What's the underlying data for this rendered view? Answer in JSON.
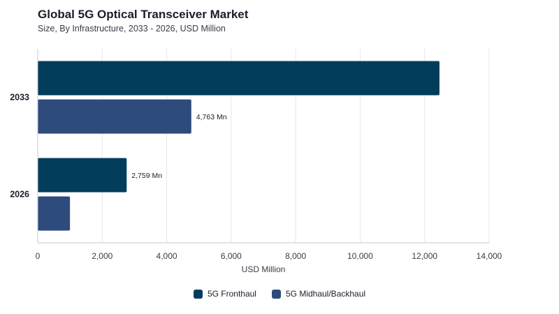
{
  "title": "Global 5G Optical Transceiver Market",
  "subtitle": "Size, By Infrastructure, 2033 - 2026, USD Million",
  "colors": {
    "fronthaul": "#023e5b",
    "midhaul": "#2e4b7e"
  },
  "chart_data": {
    "type": "bar",
    "orientation": "horizontal",
    "title": "Global 5G Optical Transceiver Market",
    "subtitle": "Size, By Infrastructure, 2033 - 2026, USD Million",
    "categories": [
      "2033",
      "2026"
    ],
    "series": [
      {
        "name": "5G Fronthaul",
        "values": [
          12460,
          2759
        ],
        "labels": [
          "",
          "2,759 Mn"
        ]
      },
      {
        "name": "5G Midhaul/Backhaul",
        "values": [
          4763,
          1000
        ],
        "labels": [
          "4,763 Mn",
          ""
        ]
      }
    ],
    "xlabel": "USD Million",
    "ylabel": "",
    "xlim": [
      0,
      14000
    ],
    "xticks": [
      0,
      2000,
      4000,
      6000,
      8000,
      10000,
      12000,
      14000
    ],
    "xtick_labels": [
      "0",
      "2,000",
      "4,000",
      "6,000",
      "8,000",
      "10,000",
      "12,000",
      "14,000"
    ],
    "grid": true,
    "legend_position": "bottom"
  }
}
